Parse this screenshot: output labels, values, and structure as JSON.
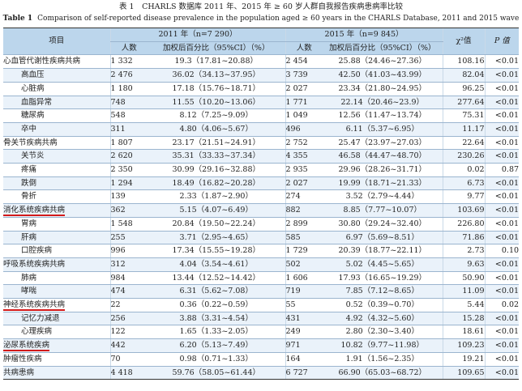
{
  "caption": {
    "cn": "表 1　CHARLS 数据库 2011 年、2015 年 ≥ 60 岁人群自我报告疾病患病率比较",
    "en_label": "Table 1",
    "en": "Comparison of self-reported disease prevalence in the population aged ≥ 60 years in the CHARLS Database, 2011 and 2015 wave"
  },
  "header": {
    "item": "项目",
    "y2011": "2011 年（n=7 290）",
    "y2015": "2015 年（n=9 845）",
    "chi2": "χ²值",
    "p": "P 值",
    "count": "人数",
    "pct": "加权后百分比（95%CI）（%）"
  },
  "rows": [
    {
      "name": "心血管代谢性疾病共病",
      "n1": "1 332",
      "p1": "19.3（17.81~20.88）",
      "n2": "2 454",
      "p2": "25.88（24.46~27.36）",
      "chi": "108.16",
      "p": "<0.01",
      "sub": false,
      "mark": false
    },
    {
      "name": "高血压",
      "n1": "2 476",
      "p1": "36.02（34.13~37.95）",
      "n2": "3 739",
      "p2": "42.50（41.03~43.99）",
      "chi": "82.04",
      "p": "<0.01",
      "sub": true,
      "mark": false
    },
    {
      "name": "心脏病",
      "n1": "1 180",
      "p1": "17.18（15.76~18.71）",
      "n2": "2 027",
      "p2": "23.34（21.80~24.95）",
      "chi": "96.25",
      "p": "<0.01",
      "sub": true,
      "mark": false
    },
    {
      "name": "血脂异常",
      "n1": "748",
      "p1": "11.55（10.20~13.06）",
      "n2": "1 771",
      "p2": "22.14（20.46~23.9）",
      "chi": "277.64",
      "p": "<0.01",
      "sub": true,
      "mark": false
    },
    {
      "name": "糖尿病",
      "n1": "548",
      "p1": "8.12（7.25~9.09）",
      "n2": "1 049",
      "p2": "12.56（11.47~13.74）",
      "chi": "75.31",
      "p": "<0.01",
      "sub": true,
      "mark": false
    },
    {
      "name": "卒中",
      "n1": "311",
      "p1": "4.80（4.06~5.67）",
      "n2": "496",
      "p2": "6.11（5.37~6.95）",
      "chi": "11.17",
      "p": "<0.01",
      "sub": true,
      "mark": false
    },
    {
      "name": "骨关节疾病共病",
      "n1": "1 807",
      "p1": "23.17（21.51~24.91）",
      "n2": "2 752",
      "p2": "25.47（23.97~27.03）",
      "chi": "22.64",
      "p": "<0.01",
      "sub": false,
      "mark": false
    },
    {
      "name": "关节炎",
      "n1": "2 620",
      "p1": "35.31（33.33~37.34）",
      "n2": "4 355",
      "p2": "46.58（44.47~48.70）",
      "chi": "230.26",
      "p": "<0.01",
      "sub": true,
      "mark": false
    },
    {
      "name": "疼痛",
      "n1": "2 350",
      "p1": "30.99（29.16~32.88）",
      "n2": "2 935",
      "p2": "29.96（28.26~31.71）",
      "chi": "0.02",
      "p": "0.87",
      "sub": true,
      "mark": false
    },
    {
      "name": "跌倒",
      "n1": "1 294",
      "p1": "18.49（16.82~20.28）",
      "n2": "2 027",
      "p2": "19.99（18.71~21.33）",
      "chi": "6.73",
      "p": "<0.01",
      "sub": true,
      "mark": false
    },
    {
      "name": "骨折",
      "n1": "139",
      "p1": "2.33（1.87~2.90）",
      "n2": "274",
      "p2": "3.52（2.79~4.44）",
      "chi": "9.77",
      "p": "<0.01",
      "sub": true,
      "mark": false
    },
    {
      "name": "消化系统疾病共病",
      "n1": "362",
      "p1": "5.15（4.07~6.49）",
      "n2": "882",
      "p2": "8.85（7.77~10.07）",
      "chi": "103.69",
      "p": "<0.01",
      "sub": false,
      "mark": true
    },
    {
      "name": "胃病",
      "n1": "1 548",
      "p1": "20.84（19.50~22.24）",
      "n2": "2 899",
      "p2": "30.80（29.24~32.40）",
      "chi": "226.80",
      "p": "<0.01",
      "sub": true,
      "mark": false
    },
    {
      "name": "肝病",
      "n1": "255",
      "p1": "3.71（2.95~4.65）",
      "n2": "585",
      "p2": "6.97（5.69~8.51）",
      "chi": "71.86",
      "p": "<0.01",
      "sub": true,
      "mark": false
    },
    {
      "name": "口腔疾病",
      "n1": "996",
      "p1": "17.34（15.55~19.28）",
      "n2": "1 729",
      "p2": "20.39（18.77~22.11）",
      "chi": "2.73",
      "p": "0.10",
      "sub": true,
      "mark": false
    },
    {
      "name": "呼吸系统疾病共病",
      "n1": "312",
      "p1": "4.04（3.54~4.61）",
      "n2": "502",
      "p2": "5.02（4.45~5.65）",
      "chi": "9.63",
      "p": "<0.01",
      "sub": false,
      "mark": false
    },
    {
      "name": "肺病",
      "n1": "984",
      "p1": "13.44（12.52~14.42）",
      "n2": "1 606",
      "p2": "17.93（16.65~19.29）",
      "chi": "50.90",
      "p": "<0.01",
      "sub": true,
      "mark": false
    },
    {
      "name": "哮喘",
      "n1": "474",
      "p1": "6.31（5.62~7.08）",
      "n2": "719",
      "p2": "7.85（7.12~8.65）",
      "chi": "11.09",
      "p": "<0.01",
      "sub": true,
      "mark": false
    },
    {
      "name": "神经系统疾病共病",
      "n1": "22",
      "p1": "0.36（0.22~0.59）",
      "n2": "55",
      "p2": "0.52（0.39~0.70）",
      "chi": "5.44",
      "p": "0.02",
      "sub": false,
      "mark": true
    },
    {
      "name": "记忆力减退",
      "n1": "256",
      "p1": "3.88（3.31~4.54）",
      "n2": "431",
      "p2": "4.92（4.32~5.60）",
      "chi": "15.28",
      "p": "<0.01",
      "sub": true,
      "mark": false
    },
    {
      "name": "心理疾病",
      "n1": "122",
      "p1": "1.65（1.33~2.05）",
      "n2": "249",
      "p2": "2.80（2.30~3.40）",
      "chi": "18.61",
      "p": "<0.01",
      "sub": true,
      "mark": false
    },
    {
      "name": "泌尿系统疾病",
      "n1": "442",
      "p1": "6.20（5.13~7.49）",
      "n2": "971",
      "p2": "10.82（9.77~11.98）",
      "chi": "109.23",
      "p": "<0.01",
      "sub": false,
      "mark": true
    },
    {
      "name": "肿瘤性疾病",
      "n1": "70",
      "p1": "0.98（0.71~1.33）",
      "n2": "164",
      "p2": "1.91（1.56~2.35）",
      "chi": "19.21",
      "p": "<0.01",
      "sub": false,
      "mark": false
    },
    {
      "name": "共病患病",
      "n1": "4 418",
      "p1": "59.76（58.05~61.44）",
      "n2": "6 727",
      "p2": "66.90（65.03~68.72）",
      "chi": "109.65",
      "p": "<0.01",
      "sub": false,
      "mark": false
    }
  ],
  "colors": {
    "header_bg": "#bcd6ec",
    "stripe": "#eaf2fa",
    "underline": "#d21a1a"
  }
}
